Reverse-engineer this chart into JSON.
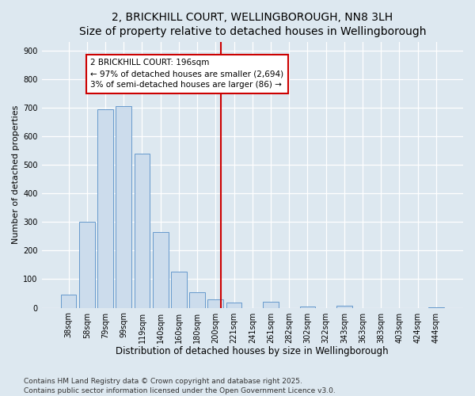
{
  "title": "2, BRICKHILL COURT, WELLINGBOROUGH, NN8 3LH",
  "subtitle": "Size of property relative to detached houses in Wellingborough",
  "xlabel": "Distribution of detached houses by size in Wellingborough",
  "ylabel": "Number of detached properties",
  "bar_labels": [
    "38sqm",
    "58sqm",
    "79sqm",
    "99sqm",
    "119sqm",
    "140sqm",
    "160sqm",
    "180sqm",
    "200sqm",
    "221sqm",
    "241sqm",
    "261sqm",
    "282sqm",
    "302sqm",
    "322sqm",
    "343sqm",
    "363sqm",
    "383sqm",
    "403sqm",
    "424sqm",
    "444sqm"
  ],
  "bar_values": [
    46,
    300,
    695,
    705,
    540,
    265,
    125,
    55,
    30,
    17,
    0,
    20,
    0,
    5,
    0,
    8,
    0,
    0,
    0,
    0,
    3
  ],
  "bar_color": "#ccdcec",
  "bar_edge_color": "#6699cc",
  "vline_x": 8.3,
  "vline_color": "#cc0000",
  "annotation_line0": "2 BRICKHILL COURT: 196sqm",
  "annotation_line1": "← 97% of detached houses are smaller (2,694)",
  "annotation_line2": "3% of semi-detached houses are larger (86) →",
  "annotation_box_color": "#cc0000",
  "ylim": [
    0,
    930
  ],
  "yticks": [
    0,
    100,
    200,
    300,
    400,
    500,
    600,
    700,
    800,
    900
  ],
  "bg_color": "#dde8f0",
  "plot_bg_color": "#dde8f0",
  "grid_color": "#ffffff",
  "footer_line1": "Contains HM Land Registry data © Crown copyright and database right 2025.",
  "footer_line2": "Contains public sector information licensed under the Open Government Licence v3.0.",
  "title_fontsize": 10,
  "subtitle_fontsize": 9,
  "xlabel_fontsize": 8.5,
  "ylabel_fontsize": 8,
  "tick_fontsize": 7,
  "annotation_fontsize": 7.5,
  "footer_fontsize": 6.5
}
